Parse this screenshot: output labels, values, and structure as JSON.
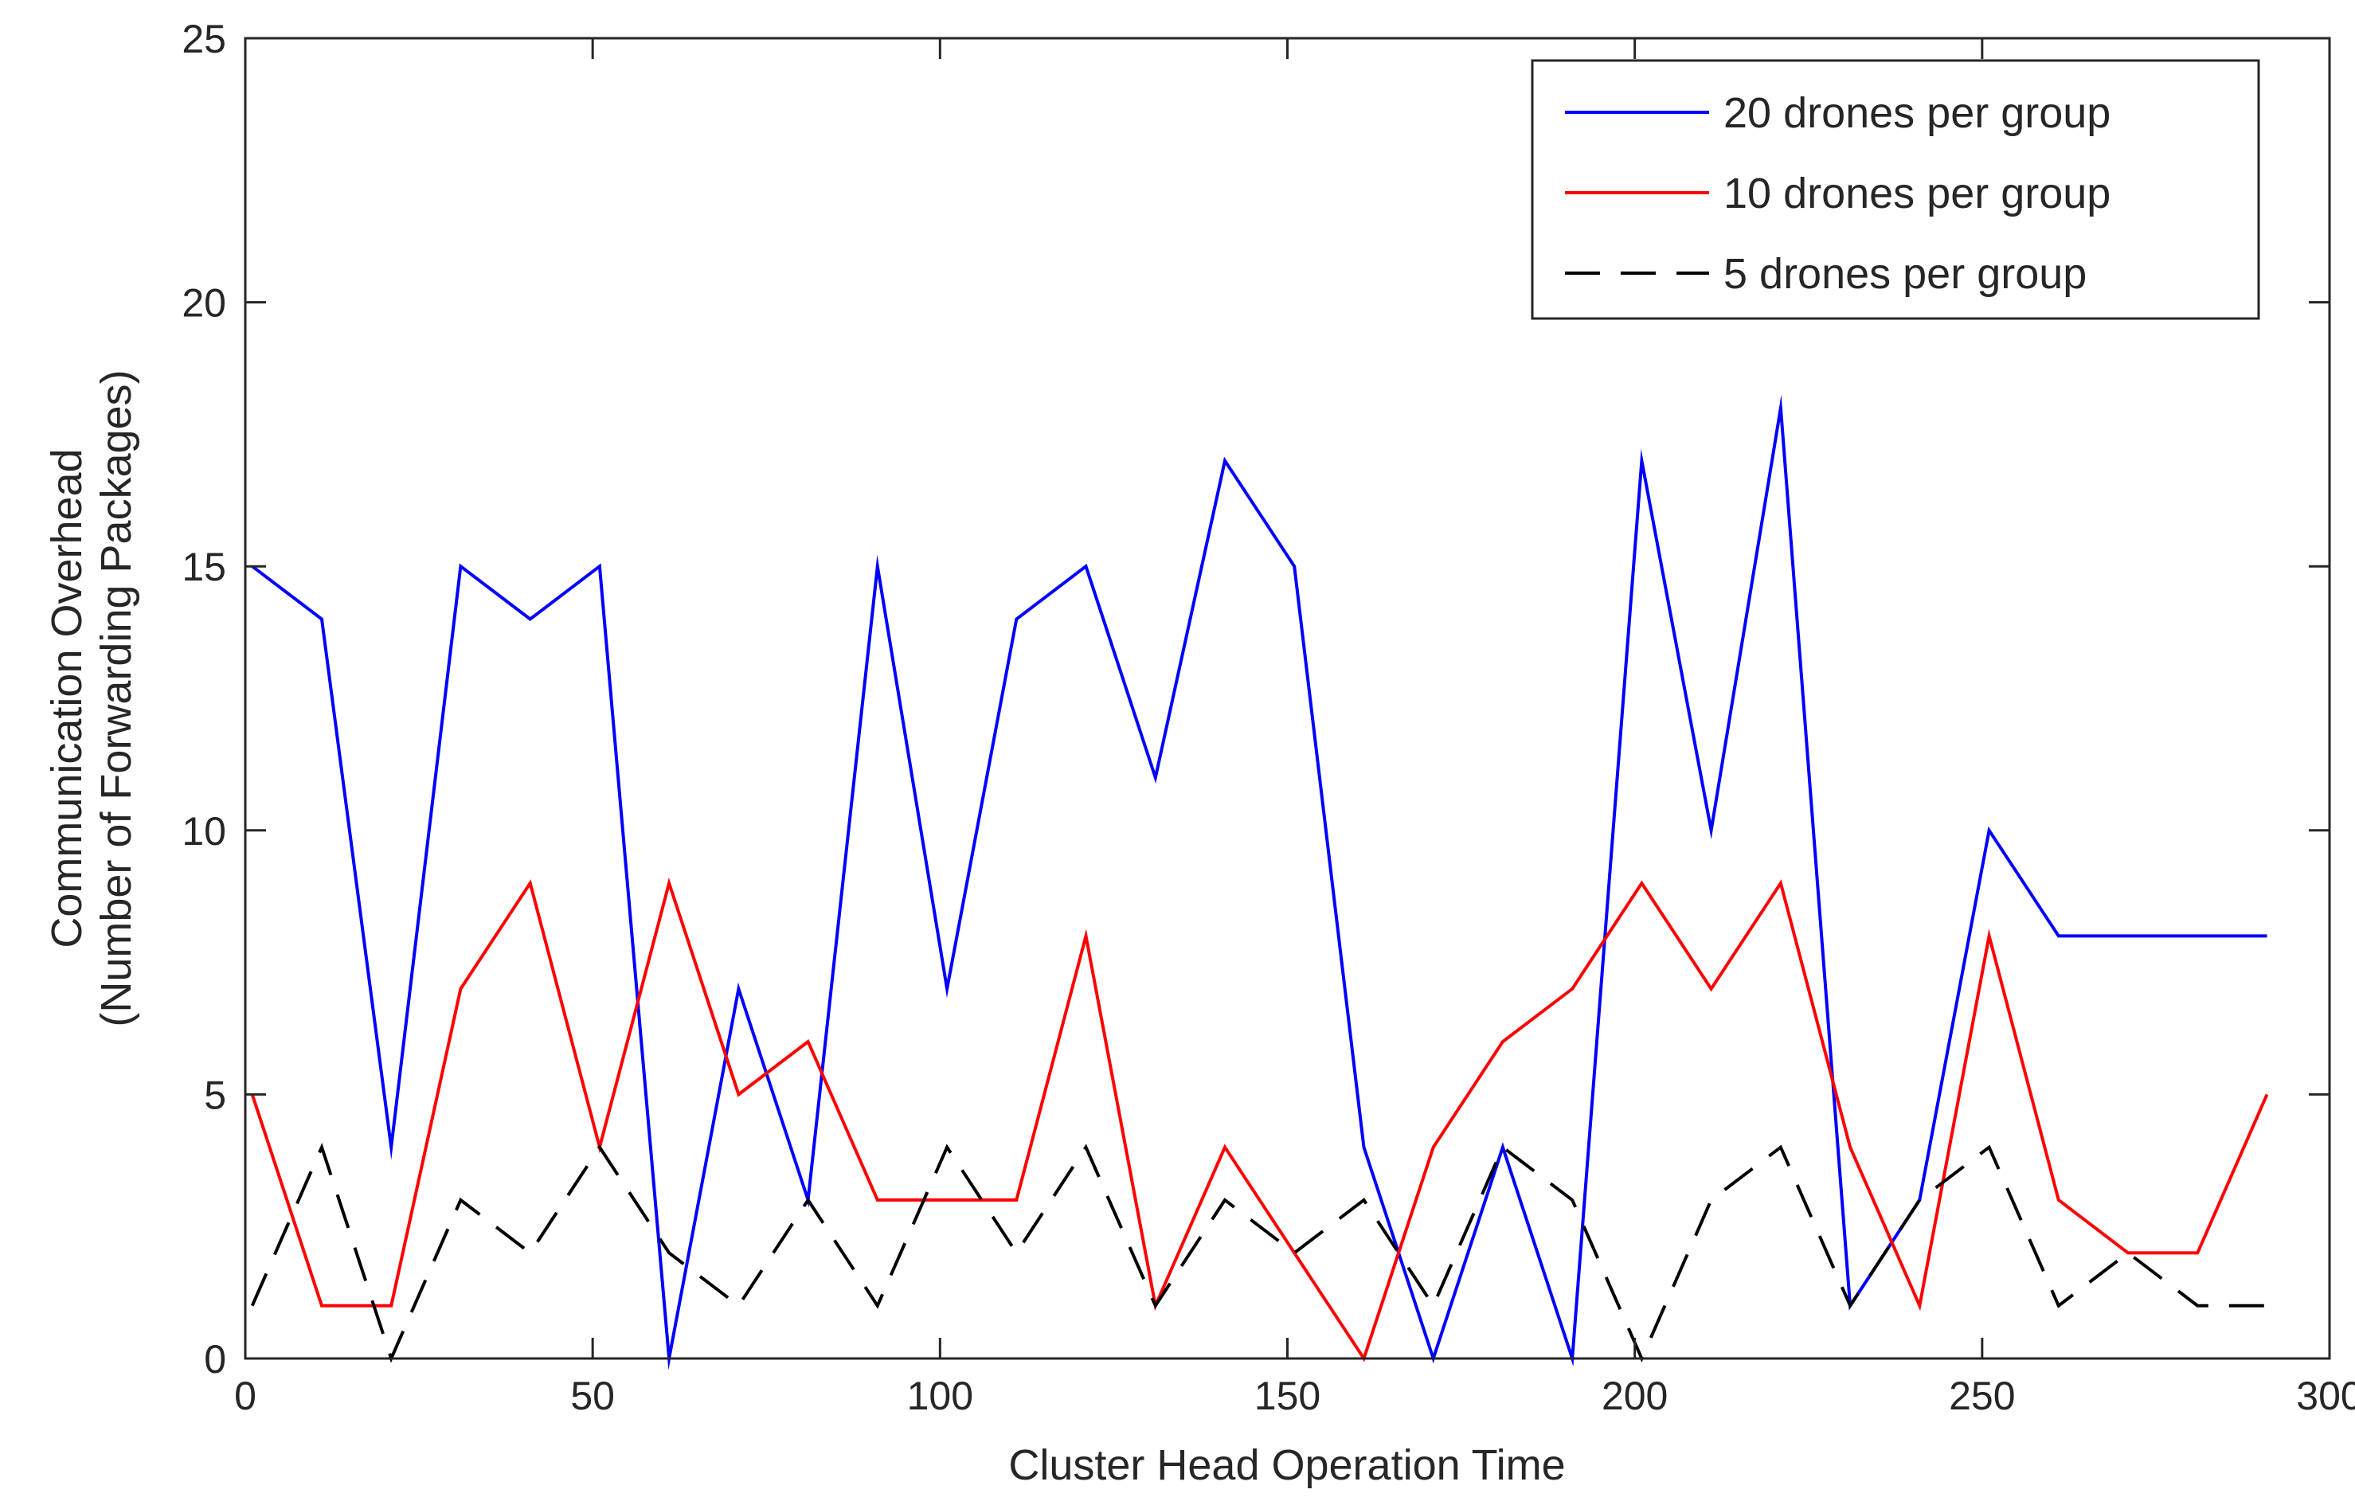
{
  "chart_data": {
    "type": "line",
    "title": "",
    "xlabel": "Cluster Head Operation Time",
    "ylabel": [
      "Communication Overhead",
      "(Number of Forwarding Packages)"
    ],
    "xlim": [
      0,
      300
    ],
    "ylim": [
      0,
      25
    ],
    "xticks": [
      0,
      50,
      100,
      150,
      200,
      250,
      300
    ],
    "yticks": [
      0,
      5,
      10,
      15,
      20,
      25
    ],
    "grid": false,
    "legend_position": "top-right",
    "x": [
      1,
      11,
      21,
      31,
      41,
      51,
      61,
      71,
      81,
      91,
      101,
      111,
      121,
      131,
      141,
      151,
      161,
      171,
      181,
      191,
      201,
      211,
      221,
      231,
      241,
      251,
      261,
      271,
      281,
      291
    ],
    "series": [
      {
        "name": "20 drones per group",
        "color": "#0000ff",
        "style": "solid",
        "values": [
          15,
          14,
          4,
          15,
          14,
          15,
          0,
          7,
          3,
          15,
          7,
          14,
          15,
          11,
          17,
          15,
          4,
          0,
          4,
          0,
          17,
          10,
          18,
          1,
          3,
          10,
          8,
          8,
          8,
          8
        ]
      },
      {
        "name": "10 drones per group",
        "color": "#ff0000",
        "style": "solid",
        "values": [
          5,
          1,
          1,
          7,
          9,
          4,
          9,
          5,
          6,
          3,
          3,
          3,
          8,
          1,
          4,
          2,
          0,
          4,
          6,
          7,
          9,
          7,
          9,
          4,
          1,
          8,
          3,
          2,
          2,
          5
        ]
      },
      {
        "name": "5 drones per group",
        "color": "#000000",
        "style": "dashed",
        "values": [
          1,
          4,
          0,
          3,
          2,
          4,
          2,
          1,
          3,
          1,
          4,
          2,
          4,
          1,
          3,
          2,
          3,
          1,
          4,
          3,
          0,
          3,
          4,
          1,
          3,
          4,
          1,
          2,
          1,
          1
        ]
      }
    ]
  }
}
